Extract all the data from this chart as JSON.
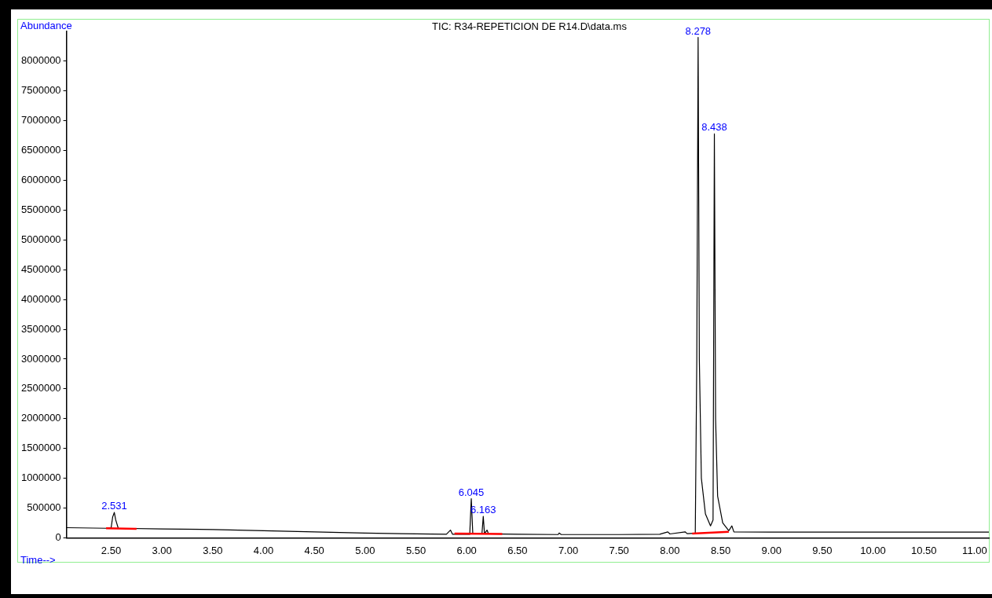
{
  "chart_data": {
    "type": "line",
    "title": "TIC: R34-REPETICION DE R14.D\\data.ms",
    "xlabel": "Time-->",
    "ylabel": "Abundance",
    "xlim": [
      2.06,
      11.14
    ],
    "ylim": [
      0,
      8500000
    ],
    "xticks": [
      {
        "value": 2.5,
        "label": "2.50"
      },
      {
        "value": 3,
        "label": "3.00"
      },
      {
        "value": 3.5,
        "label": "3.50"
      },
      {
        "value": 4,
        "label": "4.00"
      },
      {
        "value": 4.5,
        "label": "4.50"
      },
      {
        "value": 5,
        "label": "5.00"
      },
      {
        "value": 5.5,
        "label": "5.50"
      },
      {
        "value": 6,
        "label": "6.00"
      },
      {
        "value": 6.5,
        "label": "6.50"
      },
      {
        "value": 7,
        "label": "7.00"
      },
      {
        "value": 7.5,
        "label": "7.50"
      },
      {
        "value": 8,
        "label": "8.00"
      },
      {
        "value": 8.5,
        "label": "8.50"
      },
      {
        "value": 9,
        "label": "9.00"
      },
      {
        "value": 9.5,
        "label": "9.50"
      },
      {
        "value": 10,
        "label": "10.00"
      },
      {
        "value": 10.5,
        "label": "10.50"
      },
      {
        "value": 11,
        "label": "11.00"
      }
    ],
    "yticks": [
      0,
      500000,
      1000000,
      1500000,
      2000000,
      2500000,
      3000000,
      3500000,
      4000000,
      4500000,
      5000000,
      5500000,
      6000000,
      6500000,
      7000000,
      7500000,
      8000000
    ],
    "grid": false,
    "legend": false,
    "marker": "none",
    "line_style": "solid",
    "series": [
      {
        "color": "#000000",
        "x": [
          2.06,
          2.45,
          2.5,
          2.515,
          2.531,
          2.545,
          2.57,
          3.0,
          3.5,
          4.0,
          4.5,
          5.0,
          5.5,
          5.8,
          5.84,
          5.86,
          6.03,
          6.045,
          6.06,
          6.15,
          6.163,
          6.175,
          6.2,
          6.215,
          6.5,
          6.9,
          6.91,
          6.93,
          7.5,
          7.9,
          7.98,
          8.0,
          8.15,
          8.17,
          8.25,
          8.265,
          8.278,
          8.29,
          8.31,
          8.35,
          8.4,
          8.425,
          8.438,
          8.45,
          8.47,
          8.52,
          8.58,
          8.61,
          8.63,
          9.0,
          10.0,
          11.14
        ],
        "values": [
          170000,
          160000,
          170000,
          350000,
          425000,
          300000,
          160000,
          150000,
          140000,
          120000,
          100000,
          80000,
          65000,
          60000,
          130000,
          60000,
          60000,
          657000,
          65000,
          65000,
          360000,
          70000,
          130000,
          65000,
          60000,
          55000,
          80000,
          55000,
          55000,
          60000,
          100000,
          65000,
          100000,
          70000,
          75000,
          3000000,
          8400000,
          3000000,
          1000000,
          400000,
          200000,
          300000,
          6780000,
          2000000,
          700000,
          250000,
          120000,
          200000,
          100000,
          95000,
          95000,
          95000
        ]
      },
      {
        "color": "#ff0000",
        "x": [
          2.45,
          2.75
        ],
        "values": [
          160000,
          150000
        ]
      },
      {
        "color": "#ff0000",
        "x": [
          5.88,
          6.35
        ],
        "values": [
          70000,
          65000
        ]
      },
      {
        "color": "#ff0000",
        "x": [
          8.22,
          8.58
        ],
        "values": [
          70000,
          100000
        ]
      }
    ],
    "annotations": [
      {
        "text": "2.531",
        "x": 2.531,
        "y": 425000
      },
      {
        "text": "6.045",
        "x": 6.045,
        "y": 657000
      },
      {
        "text": "6.163",
        "x": 6.163,
        "y": 360000
      },
      {
        "text": "8.278",
        "x": 8.278,
        "y": 8400000
      },
      {
        "text": "8.438",
        "x": 8.438,
        "y": 6780000
      }
    ]
  }
}
